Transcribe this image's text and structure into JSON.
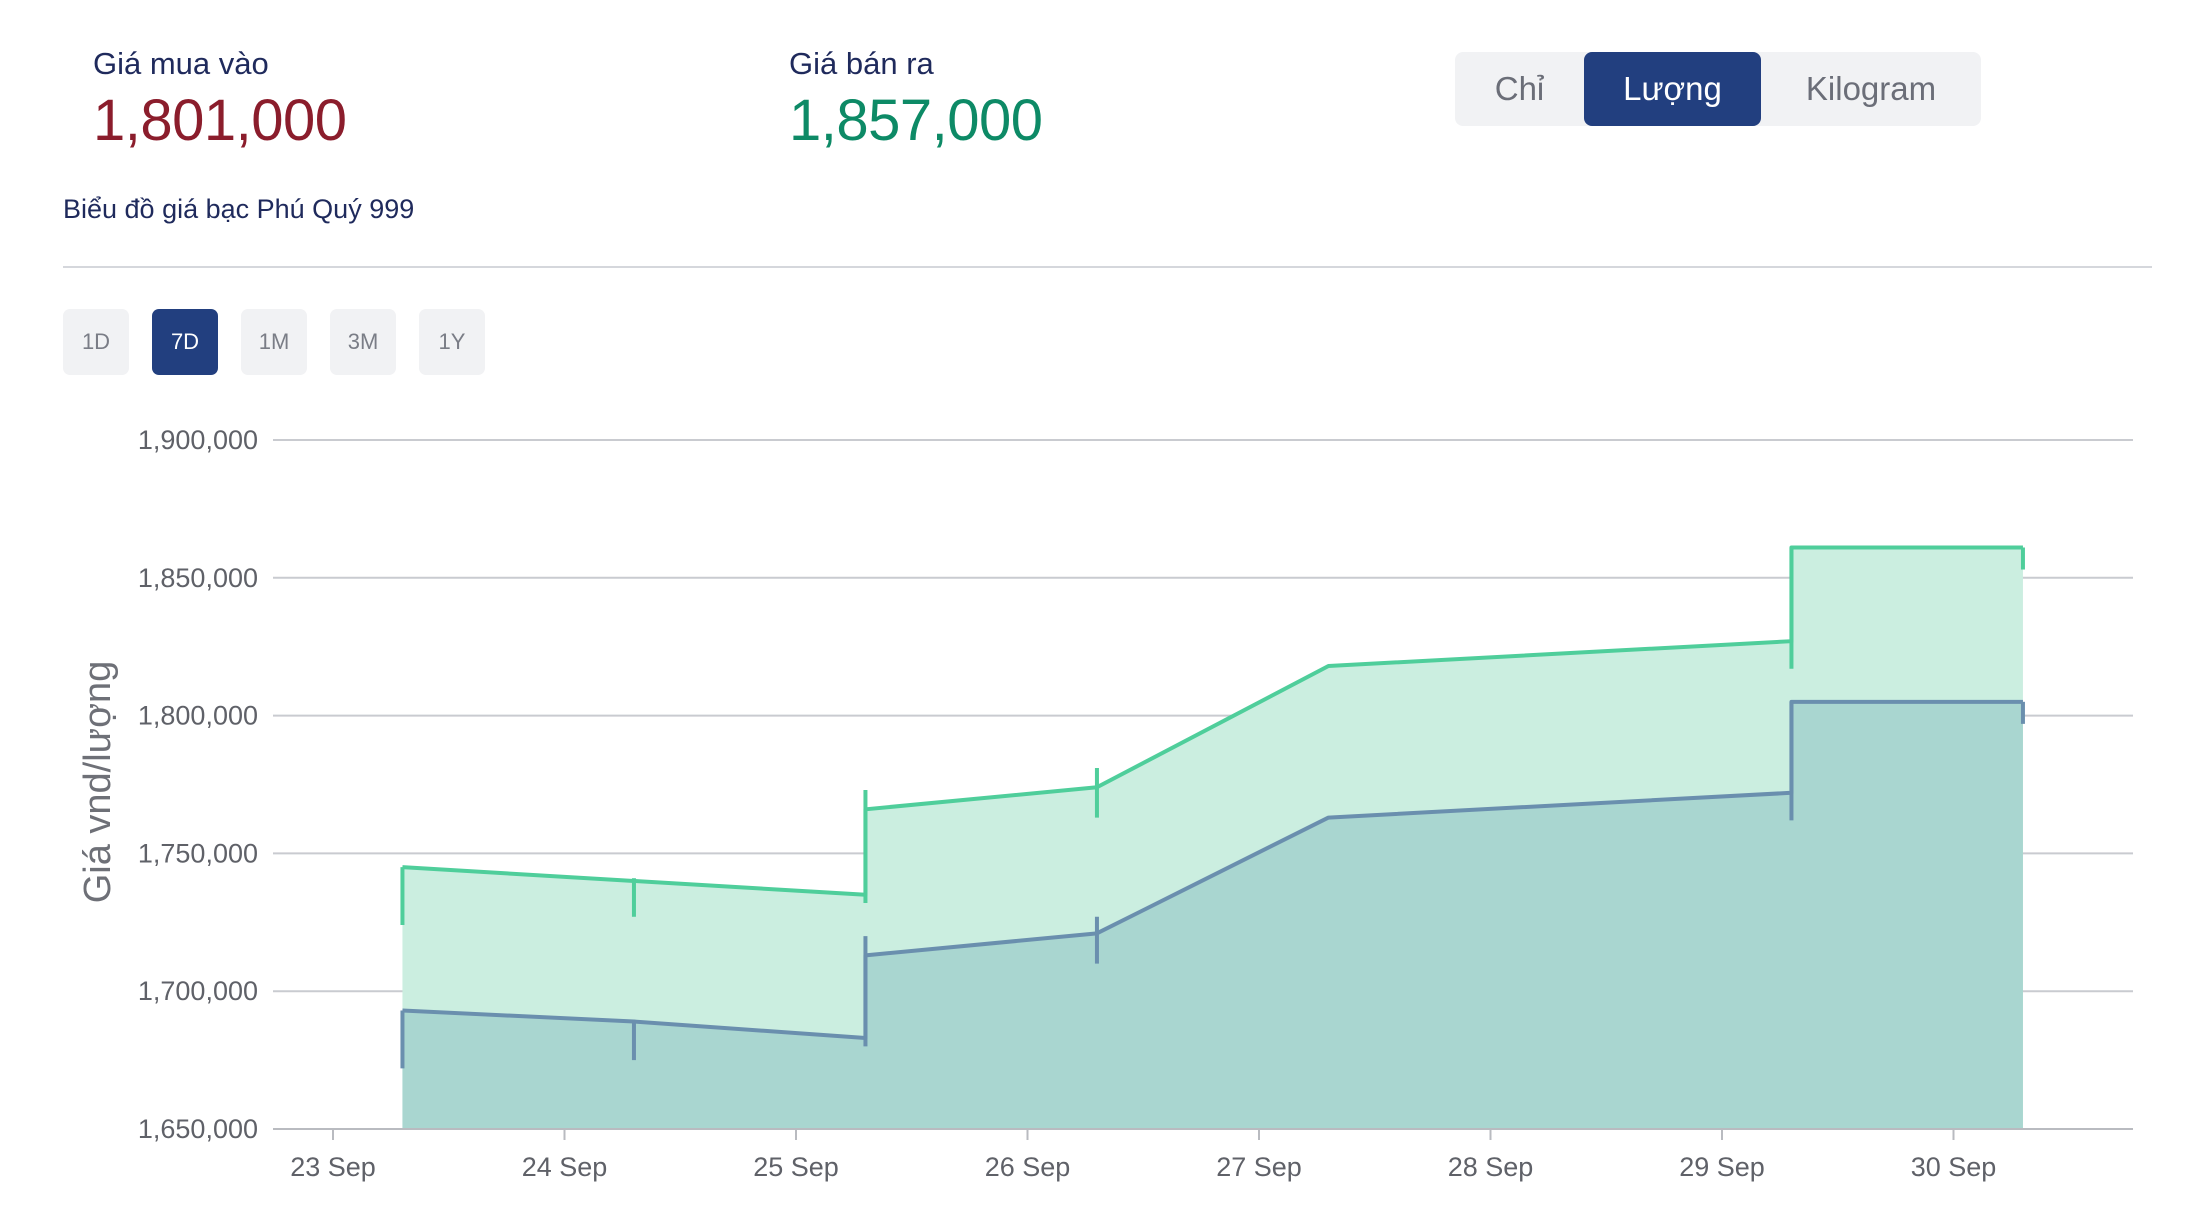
{
  "header": {
    "buy_label": "Giá mua vào",
    "buy_value": "1,801,000",
    "sell_label": "Giá bán ra",
    "sell_value": "1,857,000"
  },
  "unit_tabs": [
    {
      "label": "Chỉ",
      "active": false
    },
    {
      "label": "Lượng",
      "active": true
    },
    {
      "label": "Kilogram",
      "active": false
    }
  ],
  "chart_title": "Biểu đồ giá bạc Phú Quý 999",
  "range_tabs": [
    {
      "label": "1D",
      "active": false
    },
    {
      "label": "7D",
      "active": true
    },
    {
      "label": "1M",
      "active": false
    },
    {
      "label": "3M",
      "active": false
    },
    {
      "label": "1Y",
      "active": false
    }
  ],
  "colors": {
    "accent": "#223f7f",
    "buy_text": "#8b1d2c",
    "sell_text": "#0d8a66",
    "sell_line": "#4fce9b",
    "sell_fill": "#cbeee0",
    "buy_line": "#6a8fae",
    "buy_fill": "#a9d6d0"
  },
  "chart_data": {
    "type": "area",
    "ylabel": "Giá vnd/lượng",
    "xlabel": "",
    "ylim": [
      1650000,
      1900000
    ],
    "yticks": [
      1650000,
      1700000,
      1750000,
      1800000,
      1850000,
      1900000
    ],
    "ytick_labels": [
      "1,650,000",
      "1,700,000",
      "1,750,000",
      "1,800,000",
      "1,850,000",
      "1,900,000"
    ],
    "x_categories": [
      "23 Sep",
      "24 Sep",
      "25 Sep",
      "26 Sep",
      "27 Sep",
      "28 Sep",
      "29 Sep",
      "30 Sep"
    ],
    "grid": true,
    "series": [
      {
        "key": "sell",
        "points": [
          {
            "x": 0.3,
            "y": 1745000
          },
          {
            "x": 1.3,
            "y": 1740000
          },
          {
            "x": 2.3,
            "y": 1735000
          },
          {
            "x": 2.3,
            "y": 1766000
          },
          {
            "x": 3.3,
            "y": 1774000
          },
          {
            "x": 4.3,
            "y": 1818000
          },
          {
            "x": 6.3,
            "y": 1827000
          },
          {
            "x": 6.3,
            "y": 1861000
          },
          {
            "x": 7.3,
            "y": 1861000
          }
        ],
        "whiskers": [
          {
            "x": 0.3,
            "y_low": 1724000,
            "y_high": 1745000
          },
          {
            "x": 1.3,
            "y_low": 1727000,
            "y_high": 1741000
          },
          {
            "x": 2.3,
            "y_low": 1732000,
            "y_high": 1773000
          },
          {
            "x": 3.3,
            "y_low": 1763000,
            "y_high": 1781000
          },
          {
            "x": 6.3,
            "y_low": 1817000,
            "y_high": 1861000
          },
          {
            "x": 7.3,
            "y_low": 1853000,
            "y_high": 1861000
          }
        ]
      },
      {
        "key": "buy",
        "points": [
          {
            "x": 0.3,
            "y": 1693000
          },
          {
            "x": 1.3,
            "y": 1689000
          },
          {
            "x": 2.3,
            "y": 1683000
          },
          {
            "x": 2.3,
            "y": 1713000
          },
          {
            "x": 3.3,
            "y": 1721000
          },
          {
            "x": 4.3,
            "y": 1763000
          },
          {
            "x": 6.3,
            "y": 1772000
          },
          {
            "x": 6.3,
            "y": 1805000
          },
          {
            "x": 7.3,
            "y": 1805000
          }
        ],
        "whiskers": [
          {
            "x": 0.3,
            "y_low": 1672000,
            "y_high": 1693000
          },
          {
            "x": 1.3,
            "y_low": 1675000,
            "y_high": 1689000
          },
          {
            "x": 2.3,
            "y_low": 1680000,
            "y_high": 1720000
          },
          {
            "x": 3.3,
            "y_low": 1710000,
            "y_high": 1727000
          },
          {
            "x": 6.3,
            "y_low": 1762000,
            "y_high": 1805000
          },
          {
            "x": 7.3,
            "y_low": 1797000,
            "y_high": 1805000
          }
        ]
      }
    ]
  }
}
